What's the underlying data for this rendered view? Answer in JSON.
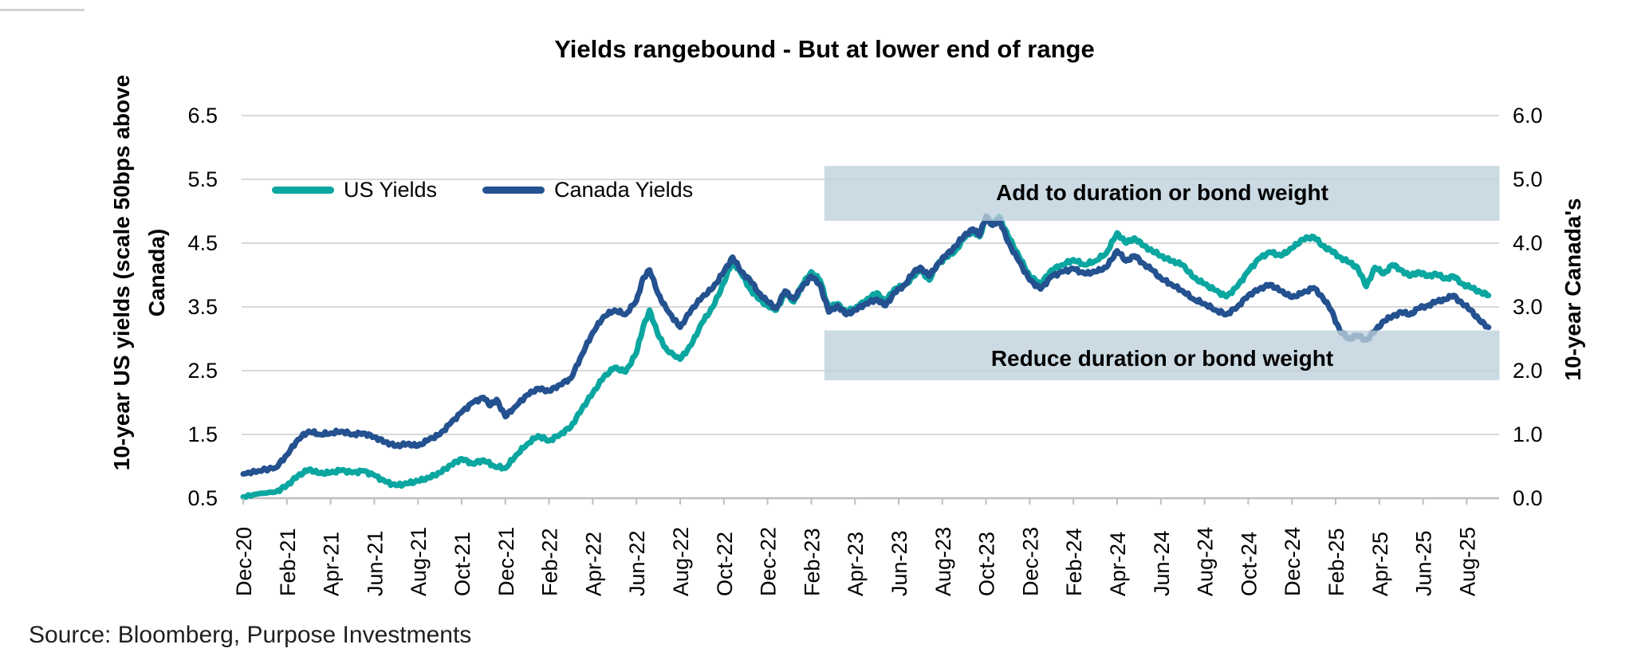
{
  "title": "Yields rangebound - But at lower end of range",
  "source": "Source: Bloomberg, Purpose Investments",
  "legend": {
    "us": {
      "label": "US Yields",
      "color": "#0BA6A0"
    },
    "canada": {
      "label": "Canada Yields",
      "color": "#24518F"
    }
  },
  "colors": {
    "us_line": "#0BA6A0",
    "canada_line": "#24518F",
    "band_fill": "rgba(189,207,219,0.78)",
    "gridline": "#D9D9D9",
    "axis_line": "#BFBFBF"
  },
  "axes": {
    "left": {
      "title_line1": "10-year US yields (scale 50bps above",
      "title_line2": "Canada)",
      "ticks": [
        "6.5",
        "5.5",
        "4.5",
        "3.5",
        "2.5",
        "1.5",
        "0.5"
      ],
      "range": [
        0.5,
        6.5
      ]
    },
    "right": {
      "title": "10-year Canada's",
      "ticks": [
        "6.0",
        "5.0",
        "4.0",
        "3.0",
        "2.0",
        "1.0",
        "0.0"
      ],
      "range": [
        0.0,
        6.0
      ]
    },
    "x": {
      "tick_labels": [
        "Dec-20",
        "Feb-21",
        "Apr-21",
        "Jun-21",
        "Aug-21",
        "Oct-21",
        "Dec-21",
        "Feb-22",
        "Apr-22",
        "Jun-22",
        "Aug-22",
        "Oct-22",
        "Dec-22",
        "Feb-23",
        "Apr-23",
        "Jun-23",
        "Aug-23",
        "Oct-23",
        "Dec-23",
        "Feb-24",
        "Apr-24",
        "Jun-24",
        "Aug-24",
        "Oct-24",
        "Dec-24",
        "Feb-25",
        "Apr-25",
        "Jun-25",
        "Aug-25"
      ]
    }
  },
  "chart_data": {
    "type": "line",
    "title": "Yields rangebound - But at lower end of range",
    "x_unit": "months since Dec-2020 (x = fractional month index, monthly estimates read from plot)",
    "x_tick_step_months": 2,
    "grid": "horizontal only",
    "legend_position": "top-left inside plot",
    "ylim_left": [
      0.5,
      6.5
    ],
    "ylim_right": [
      0.0,
      6.0
    ],
    "series": [
      {
        "name": "US Yields",
        "axis": "left",
        "color": "#0BA6A0",
        "points": [
          [
            0,
            0.52
          ],
          [
            0.7,
            0.57
          ],
          [
            1.5,
            0.6
          ],
          [
            2,
            0.7
          ],
          [
            2.5,
            0.85
          ],
          [
            3,
            0.95
          ],
          [
            3.5,
            0.89
          ],
          [
            4,
            0.9
          ],
          [
            4.5,
            0.94
          ],
          [
            5,
            0.9
          ],
          [
            5.5,
            0.93
          ],
          [
            6,
            0.86
          ],
          [
            6.5,
            0.76
          ],
          [
            7,
            0.7
          ],
          [
            7.5,
            0.73
          ],
          [
            8,
            0.77
          ],
          [
            8.5,
            0.82
          ],
          [
            9,
            0.9
          ],
          [
            9.5,
            1.02
          ],
          [
            10,
            1.12
          ],
          [
            10.5,
            1.04
          ],
          [
            11,
            1.1
          ],
          [
            11.5,
            1.0
          ],
          [
            12,
            0.97
          ],
          [
            12.5,
            1.18
          ],
          [
            13,
            1.35
          ],
          [
            13.5,
            1.48
          ],
          [
            14,
            1.4
          ],
          [
            14.5,
            1.5
          ],
          [
            15,
            1.62
          ],
          [
            15.5,
            1.9
          ],
          [
            16,
            2.15
          ],
          [
            16.5,
            2.4
          ],
          [
            17,
            2.55
          ],
          [
            17.5,
            2.48
          ],
          [
            18,
            2.78
          ],
          [
            18.3,
            3.18
          ],
          [
            18.6,
            3.45
          ],
          [
            19,
            3.05
          ],
          [
            19.4,
            2.82
          ],
          [
            20,
            2.68
          ],
          [
            20.5,
            2.9
          ],
          [
            21,
            3.25
          ],
          [
            21.5,
            3.5
          ],
          [
            22,
            3.88
          ],
          [
            22.4,
            4.22
          ],
          [
            22.8,
            4.02
          ],
          [
            23.2,
            3.78
          ],
          [
            23.6,
            3.62
          ],
          [
            24,
            3.52
          ],
          [
            24.4,
            3.45
          ],
          [
            24.8,
            3.72
          ],
          [
            25.2,
            3.58
          ],
          [
            25.6,
            3.85
          ],
          [
            26,
            4.05
          ],
          [
            26.4,
            3.92
          ],
          [
            26.8,
            3.48
          ],
          [
            27.2,
            3.55
          ],
          [
            27.6,
            3.42
          ],
          [
            28,
            3.48
          ],
          [
            28.5,
            3.6
          ],
          [
            29,
            3.72
          ],
          [
            29.4,
            3.58
          ],
          [
            29.8,
            3.78
          ],
          [
            30.3,
            3.85
          ],
          [
            30.7,
            3.98
          ],
          [
            31,
            4.08
          ],
          [
            31.4,
            3.92
          ],
          [
            31.8,
            4.18
          ],
          [
            32.2,
            4.28
          ],
          [
            32.6,
            4.38
          ],
          [
            33,
            4.58
          ],
          [
            33.4,
            4.7
          ],
          [
            33.7,
            4.6
          ],
          [
            34,
            4.88
          ],
          [
            34.3,
            4.78
          ],
          [
            34.6,
            4.92
          ],
          [
            35,
            4.62
          ],
          [
            35.5,
            4.3
          ],
          [
            36,
            3.98
          ],
          [
            36.5,
            3.86
          ],
          [
            37,
            4.08
          ],
          [
            37.5,
            4.16
          ],
          [
            38,
            4.24
          ],
          [
            38.5,
            4.16
          ],
          [
            39,
            4.22
          ],
          [
            39.5,
            4.34
          ],
          [
            40,
            4.66
          ],
          [
            40.4,
            4.5
          ],
          [
            40.8,
            4.58
          ],
          [
            41.2,
            4.46
          ],
          [
            41.6,
            4.38
          ],
          [
            42,
            4.3
          ],
          [
            42.5,
            4.22
          ],
          [
            43,
            4.16
          ],
          [
            43.5,
            3.96
          ],
          [
            44,
            3.86
          ],
          [
            44.5,
            3.76
          ],
          [
            45,
            3.66
          ],
          [
            45.5,
            3.82
          ],
          [
            46,
            4.06
          ],
          [
            46.5,
            4.26
          ],
          [
            47,
            4.36
          ],
          [
            47.5,
            4.3
          ],
          [
            48,
            4.42
          ],
          [
            48.5,
            4.56
          ],
          [
            49,
            4.6
          ],
          [
            49.4,
            4.46
          ],
          [
            49.8,
            4.38
          ],
          [
            50.2,
            4.28
          ],
          [
            50.6,
            4.2
          ],
          [
            51,
            4.12
          ],
          [
            51.4,
            3.82
          ],
          [
            51.8,
            4.12
          ],
          [
            52.2,
            4.02
          ],
          [
            52.6,
            4.16
          ],
          [
            53,
            4.08
          ],
          [
            53.4,
            3.98
          ],
          [
            53.8,
            4.05
          ],
          [
            54.2,
            3.98
          ],
          [
            54.6,
            4.02
          ],
          [
            55,
            3.94
          ],
          [
            55.4,
            3.98
          ],
          [
            55.8,
            3.86
          ],
          [
            56.2,
            3.8
          ],
          [
            56.6,
            3.74
          ],
          [
            57,
            3.68
          ]
        ]
      },
      {
        "name": "Canada Yields",
        "axis": "right",
        "color": "#24518F",
        "points": [
          [
            0,
            0.38
          ],
          [
            0.7,
            0.43
          ],
          [
            1.5,
            0.48
          ],
          [
            2,
            0.68
          ],
          [
            2.5,
            0.92
          ],
          [
            3,
            1.05
          ],
          [
            3.5,
            1.0
          ],
          [
            4,
            1.02
          ],
          [
            4.5,
            1.05
          ],
          [
            5,
            1.0
          ],
          [
            5.5,
            1.02
          ],
          [
            6,
            0.96
          ],
          [
            6.5,
            0.88
          ],
          [
            7,
            0.82
          ],
          [
            7.5,
            0.85
          ],
          [
            8,
            0.82
          ],
          [
            8.5,
            0.92
          ],
          [
            9,
            1.0
          ],
          [
            9.5,
            1.18
          ],
          [
            10,
            1.35
          ],
          [
            10.5,
            1.5
          ],
          [
            11,
            1.58
          ],
          [
            11.3,
            1.45
          ],
          [
            11.6,
            1.55
          ],
          [
            12,
            1.28
          ],
          [
            12.4,
            1.42
          ],
          [
            13,
            1.62
          ],
          [
            13.5,
            1.72
          ],
          [
            14,
            1.68
          ],
          [
            14.5,
            1.78
          ],
          [
            15,
            1.88
          ],
          [
            15.5,
            2.25
          ],
          [
            16,
            2.6
          ],
          [
            16.5,
            2.85
          ],
          [
            17,
            2.95
          ],
          [
            17.5,
            2.88
          ],
          [
            18,
            3.1
          ],
          [
            18.3,
            3.45
          ],
          [
            18.6,
            3.58
          ],
          [
            19,
            3.2
          ],
          [
            19.4,
            2.95
          ],
          [
            20,
            2.68
          ],
          [
            20.5,
            2.95
          ],
          [
            21,
            3.15
          ],
          [
            21.5,
            3.3
          ],
          [
            22,
            3.55
          ],
          [
            22.4,
            3.78
          ],
          [
            22.8,
            3.55
          ],
          [
            23.2,
            3.42
          ],
          [
            23.6,
            3.22
          ],
          [
            24,
            3.08
          ],
          [
            24.4,
            2.98
          ],
          [
            24.8,
            3.25
          ],
          [
            25.2,
            3.12
          ],
          [
            25.6,
            3.32
          ],
          [
            26,
            3.48
          ],
          [
            26.4,
            3.35
          ],
          [
            26.8,
            2.92
          ],
          [
            27.2,
            3.02
          ],
          [
            27.6,
            2.88
          ],
          [
            28,
            2.95
          ],
          [
            28.5,
            3.05
          ],
          [
            29,
            3.12
          ],
          [
            29.4,
            3.02
          ],
          [
            29.8,
            3.22
          ],
          [
            30.3,
            3.35
          ],
          [
            30.7,
            3.55
          ],
          [
            31,
            3.62
          ],
          [
            31.4,
            3.48
          ],
          [
            31.8,
            3.68
          ],
          [
            32.2,
            3.82
          ],
          [
            32.6,
            3.95
          ],
          [
            33,
            4.12
          ],
          [
            33.4,
            4.22
          ],
          [
            33.7,
            4.12
          ],
          [
            34,
            4.42
          ],
          [
            34.3,
            4.28
          ],
          [
            34.6,
            4.38
          ],
          [
            35,
            4.02
          ],
          [
            35.5,
            3.72
          ],
          [
            36,
            3.42
          ],
          [
            36.5,
            3.28
          ],
          [
            37,
            3.48
          ],
          [
            37.5,
            3.55
          ],
          [
            38,
            3.6
          ],
          [
            38.5,
            3.52
          ],
          [
            39,
            3.55
          ],
          [
            39.5,
            3.62
          ],
          [
            40,
            3.88
          ],
          [
            40.4,
            3.72
          ],
          [
            40.8,
            3.8
          ],
          [
            41.2,
            3.68
          ],
          [
            41.6,
            3.58
          ],
          [
            42,
            3.45
          ],
          [
            42.5,
            3.35
          ],
          [
            43,
            3.25
          ],
          [
            43.5,
            3.12
          ],
          [
            44,
            3.05
          ],
          [
            44.5,
            2.95
          ],
          [
            45,
            2.88
          ],
          [
            45.5,
            3.0
          ],
          [
            46,
            3.18
          ],
          [
            46.5,
            3.28
          ],
          [
            47,
            3.35
          ],
          [
            47.5,
            3.25
          ],
          [
            48,
            3.15
          ],
          [
            48.5,
            3.22
          ],
          [
            49,
            3.3
          ],
          [
            49.4,
            3.15
          ],
          [
            49.8,
            2.95
          ],
          [
            50.2,
            2.62
          ],
          [
            50.6,
            2.5
          ],
          [
            51,
            2.55
          ],
          [
            51.4,
            2.48
          ],
          [
            51.8,
            2.62
          ],
          [
            52.2,
            2.78
          ],
          [
            52.6,
            2.85
          ],
          [
            53,
            2.92
          ],
          [
            53.4,
            2.88
          ],
          [
            53.8,
            2.98
          ],
          [
            54.2,
            3.02
          ],
          [
            54.6,
            3.08
          ],
          [
            55,
            3.12
          ],
          [
            55.4,
            3.18
          ],
          [
            55.8,
            3.05
          ],
          [
            56.2,
            2.95
          ],
          [
            56.6,
            2.78
          ],
          [
            57,
            2.68
          ]
        ]
      }
    ],
    "bands": [
      {
        "label": "Add to duration or bond weight",
        "axis": "right",
        "value_from": 4.35,
        "value_to": 5.21,
        "x_start_month": 26.6,
        "x_end_month": 57.5
      },
      {
        "label": "Reduce duration or bond weight",
        "axis": "right",
        "value_from": 1.85,
        "value_to": 2.63,
        "x_start_month": 26.6,
        "x_end_month": 57.5
      }
    ]
  }
}
